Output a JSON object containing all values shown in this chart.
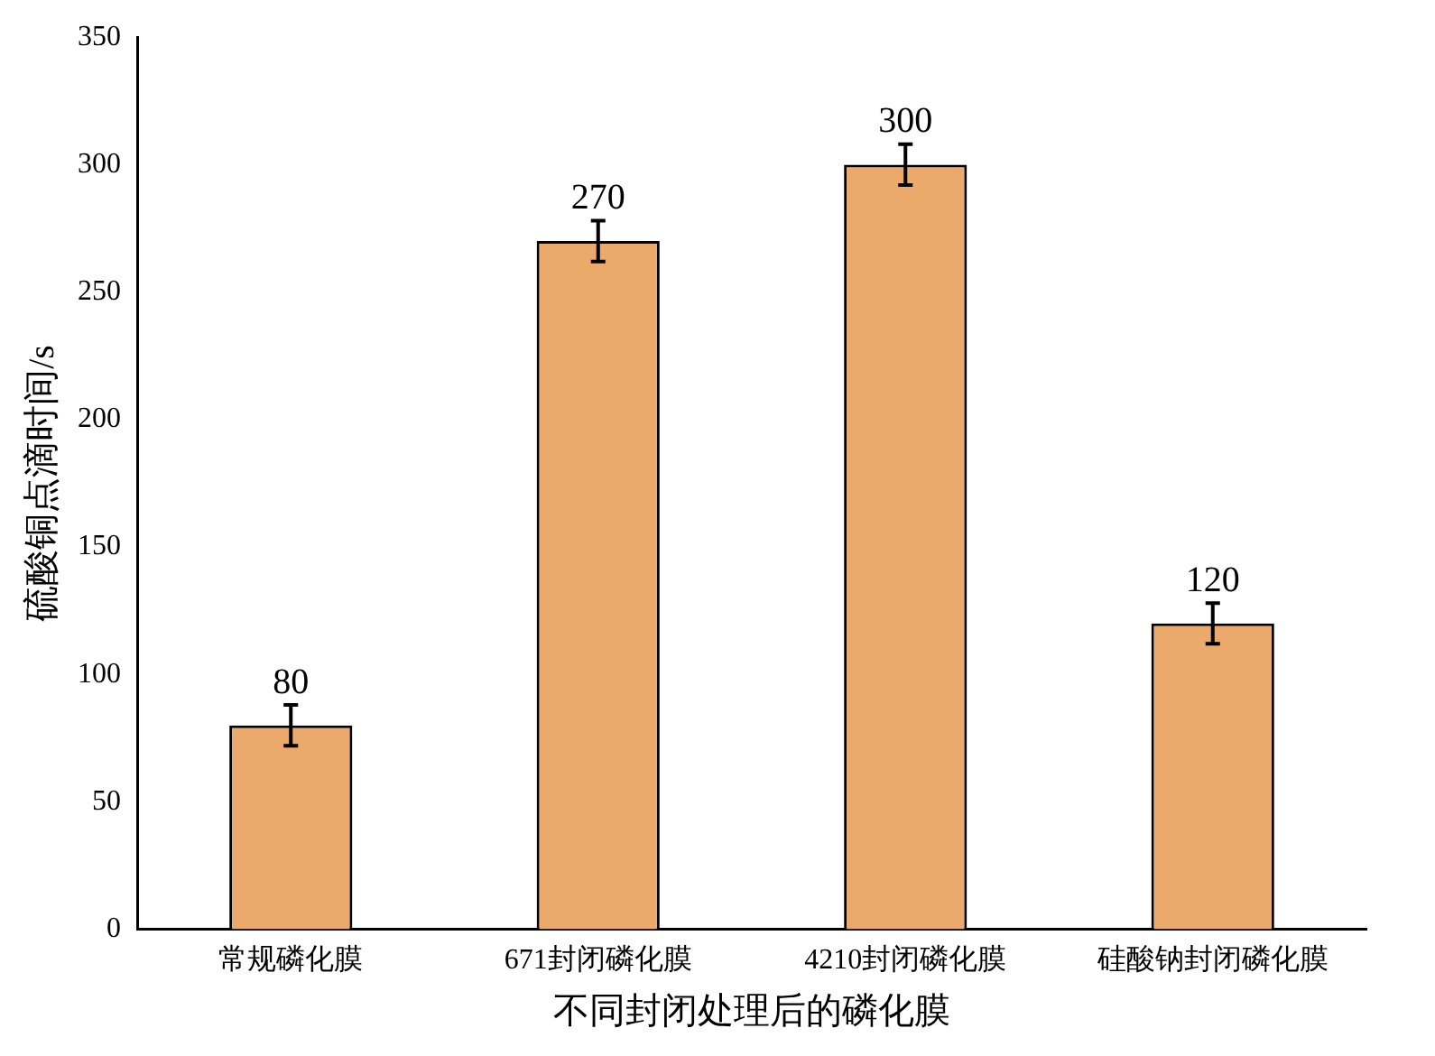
{
  "chart_data": {
    "type": "bar",
    "xlabel": "不同封闭处理后的磷化膜",
    "ylabel": "硫酸铜点滴时间/s",
    "categories": [
      "常规磷化膜",
      "671封闭磷化膜",
      "4210封闭磷化膜",
      "硅酸钠封闭磷化膜"
    ],
    "values": [
      80,
      270,
      300,
      120
    ],
    "errors": [
      8,
      8,
      8,
      8
    ],
    "color": "#eba96c",
    "ylim": [
      0,
      350
    ],
    "yticks": [
      0,
      50,
      100,
      150,
      200,
      250,
      300,
      350
    ],
    "data_labels": true,
    "grid": false,
    "legend": false
  }
}
